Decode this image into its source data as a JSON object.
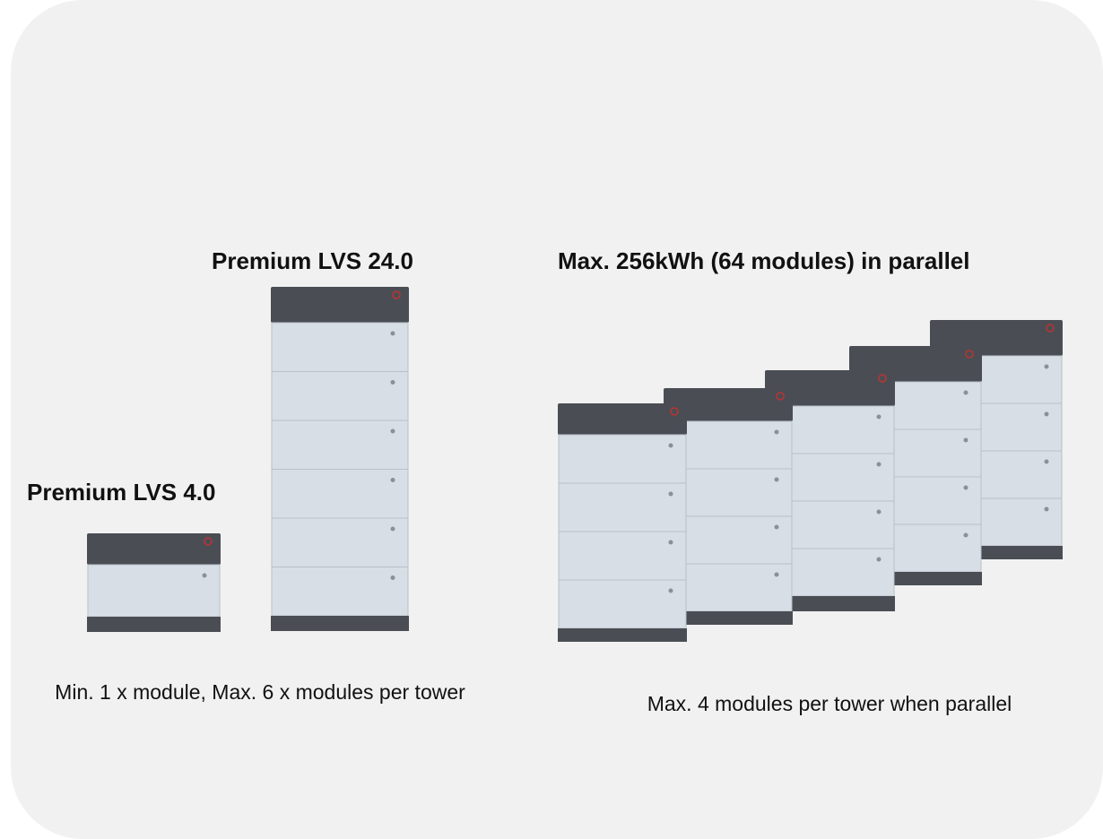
{
  "labels": {
    "tower_tall": "Premium LVS 24.0",
    "tower_small": "Premium LVS 4.0",
    "parallel": "Max. 256kWh (64 modules) in parallel"
  },
  "captions": {
    "single": "Min. 1 x module, Max. 6 x modules per tower",
    "parallel": "Max. 4 modules per tower when parallel"
  }
}
